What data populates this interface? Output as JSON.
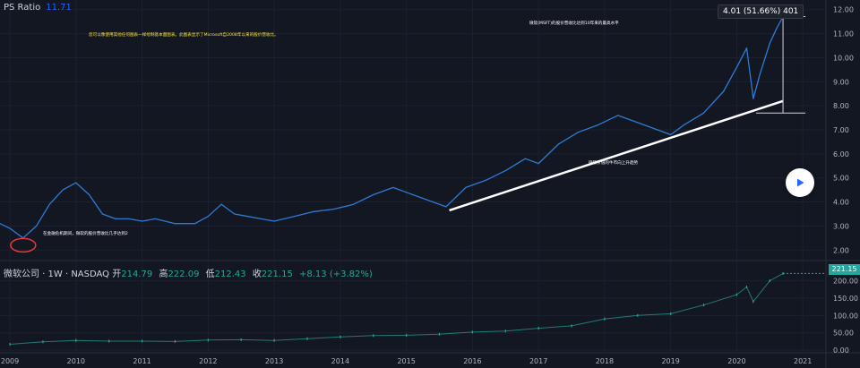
{
  "upper_legend": {
    "indicator": "PS Ratio",
    "value": "11.71"
  },
  "lower_legend": {
    "symbol": "微软公司 · 1W · NASDAQ",
    "open_label": "开",
    "open": "214.79",
    "high_label": "高",
    "high": "222.09",
    "low_label": "低",
    "low": "212.43",
    "close_label": "收",
    "close": "221.15",
    "change": "+8.13 (+3.82%)"
  },
  "annotations": {
    "top_left_note": "您可以像使用其他任何图表一样绘制基本面图表。此图表显示了Microsoft自2008年以来的股价营收比。",
    "top_right_note": "微软(MSFT)的股价营收比达到10年来的最高水平",
    "trend_note": "微软价值的牛市向上升趋势",
    "low_note": "在金融危机期间，微软的股价营收比几乎达到2"
  },
  "measure_badge": "4.01 (51.66%) 401",
  "price_badge": "221.15",
  "colors": {
    "background": "#131722",
    "line": "#2962ff",
    "trend": "#ffffff",
    "up": "#26a69a",
    "down": "#ef5350",
    "circle": "#e53935",
    "note": "#f5e642"
  },
  "icons": {
    "play": "play-icon"
  },
  "chart_data": [
    {
      "type": "line",
      "name": "PS Ratio",
      "x": [
        2008.85,
        2009.0,
        2009.2,
        2009.4,
        2009.6,
        2009.8,
        2010.0,
        2010.2,
        2010.4,
        2010.6,
        2010.8,
        2011.0,
        2011.2,
        2011.5,
        2011.8,
        2012.0,
        2012.2,
        2012.4,
        2012.6,
        2012.8,
        2013.0,
        2013.3,
        2013.6,
        2013.9,
        2014.2,
        2014.5,
        2014.8,
        2015.0,
        2015.3,
        2015.6,
        2015.9,
        2016.2,
        2016.5,
        2016.8,
        2017.0,
        2017.3,
        2017.6,
        2017.9,
        2018.2,
        2018.5,
        2018.8,
        2019.0,
        2019.2,
        2019.5,
        2019.8,
        2020.0,
        2020.15,
        2020.25,
        2020.35,
        2020.5,
        2020.6,
        2020.7
      ],
      "y": [
        3.1,
        2.9,
        2.5,
        3.0,
        3.9,
        4.5,
        4.8,
        4.3,
        3.5,
        3.3,
        3.3,
        3.2,
        3.3,
        3.1,
        3.1,
        3.4,
        3.9,
        3.5,
        3.4,
        3.3,
        3.2,
        3.4,
        3.6,
        3.7,
        3.9,
        4.3,
        4.6,
        4.4,
        4.1,
        3.8,
        4.6,
        4.9,
        5.3,
        5.8,
        5.6,
        6.4,
        6.9,
        7.2,
        7.6,
        7.3,
        7.0,
        6.8,
        7.2,
        7.7,
        8.6,
        9.6,
        10.4,
        8.3,
        9.3,
        10.6,
        11.2,
        11.71
      ],
      "ylim": [
        1.6,
        12.4
      ],
      "xlim": [
        2008.85,
        2021.35
      ],
      "yticks": [
        2.0,
        3.0,
        4.0,
        5.0,
        6.0,
        7.0,
        8.0,
        9.0,
        10.0,
        11.0,
        12.0
      ],
      "ytick_labels": [
        "2.00",
        "3.00",
        "4.00",
        "5.00",
        "6.00",
        "7.00",
        "8.00",
        "9.00",
        "10.00",
        "11.00",
        "12.00"
      ],
      "trendline": {
        "x": [
          2015.65,
          2020.7
        ],
        "y": [
          3.65,
          8.2
        ]
      }
    },
    {
      "type": "bar",
      "name": "微软公司 1W",
      "x": [
        2009.0,
        2009.5,
        2010.0,
        2010.5,
        2011.0,
        2011.5,
        2012.0,
        2012.5,
        2013.0,
        2013.5,
        2014.0,
        2014.5,
        2015.0,
        2015.5,
        2016.0,
        2016.5,
        2017.0,
        2017.5,
        2018.0,
        2018.5,
        2019.0,
        2019.5,
        2020.0,
        2020.15,
        2020.25,
        2020.5,
        2020.7
      ],
      "values": [
        17,
        24,
        28,
        26,
        26,
        25,
        29,
        30,
        28,
        33,
        38,
        42,
        43,
        46,
        52,
        55,
        63,
        70,
        90,
        100,
        105,
        130,
        160,
        182,
        140,
        200,
        221.15
      ],
      "ylim": [
        -5,
        235
      ],
      "yticks": [
        0,
        50,
        100,
        150,
        200
      ],
      "ytick_labels": [
        "0.00",
        "50.00",
        "100.00",
        "150.00",
        "200.00"
      ]
    }
  ],
  "xticks": [
    2009,
    2010,
    2011,
    2012,
    2013,
    2014,
    2015,
    2016,
    2017,
    2018,
    2019,
    2020,
    2021
  ],
  "xtick_labels": [
    "2009",
    "2010",
    "2011",
    "2012",
    "2013",
    "2014",
    "2015",
    "2016",
    "2017",
    "2018",
    "2019",
    "2020",
    "2021"
  ]
}
